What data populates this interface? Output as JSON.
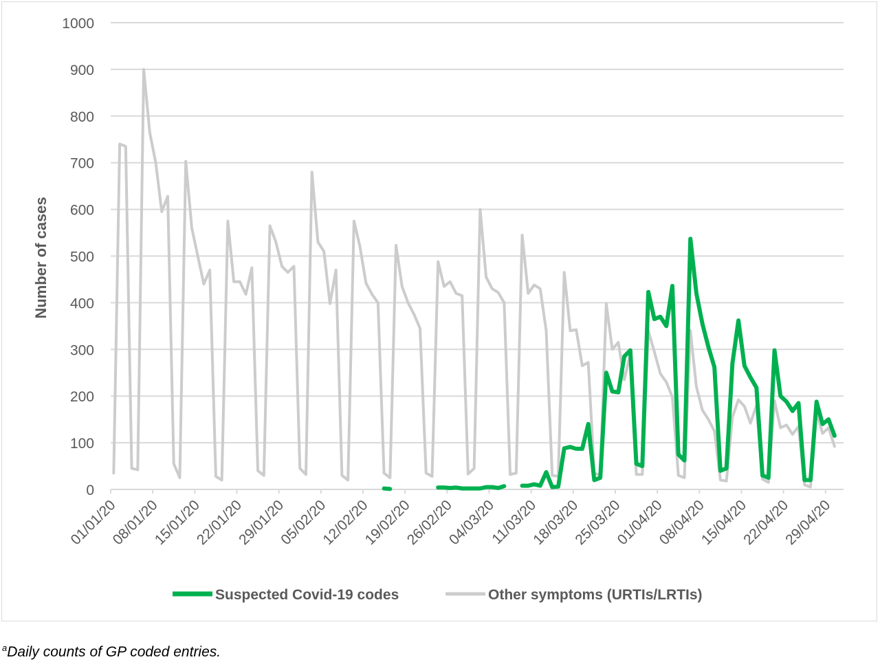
{
  "chart_data": {
    "type": "line",
    "title": "",
    "xlabel": "",
    "ylabel": "Number of cases",
    "ylim": [
      0,
      1000
    ],
    "yticks": [
      0,
      100,
      200,
      300,
      400,
      500,
      600,
      700,
      800,
      900,
      1000
    ],
    "x_tick_labels": [
      "01/01/20",
      "08/01/20",
      "15/01/20",
      "22/01/20",
      "29/01/20",
      "05/02/20",
      "12/02/20",
      "19/02/20",
      "26/02/20",
      "04/03/20",
      "11/03/20",
      "18/03/20",
      "25/03/20",
      "01/04/20",
      "08/04/20",
      "15/04/20",
      "22/04/20",
      "29/04/20"
    ],
    "grid": true,
    "legend_position": "bottom",
    "start_date": "2020-01-01",
    "num_days": 122,
    "colors": {
      "covid": "#00b050",
      "other": "#cccccc",
      "grid": "#d9d9d9",
      "axis_text": "#595959"
    },
    "series": [
      {
        "name": "Suspected Covid-19 codes",
        "values": [
          null,
          null,
          null,
          null,
          null,
          null,
          null,
          null,
          null,
          null,
          null,
          null,
          null,
          null,
          null,
          null,
          null,
          null,
          null,
          null,
          null,
          null,
          null,
          null,
          null,
          null,
          null,
          null,
          null,
          null,
          null,
          null,
          null,
          null,
          null,
          null,
          null,
          null,
          null,
          null,
          null,
          null,
          null,
          null,
          null,
          2,
          1,
          null,
          null,
          null,
          null,
          null,
          null,
          null,
          4,
          4,
          3,
          4,
          2,
          2,
          2,
          2,
          5,
          5,
          3,
          7,
          null,
          null,
          8,
          8,
          11,
          8,
          37,
          5,
          6,
          88,
          91,
          87,
          87,
          140,
          20,
          25,
          250,
          210,
          208,
          285,
          298,
          55,
          50,
          423,
          365,
          370,
          350,
          436,
          75,
          62,
          537,
          420,
          355,
          305,
          262,
          40,
          45,
          270,
          362,
          265,
          240,
          218,
          30,
          25,
          298,
          200,
          188,
          168,
          185,
          20,
          20,
          188,
          140,
          150,
          115
        ]
      },
      {
        "name": "Other symptoms (URTIs/LRTIs)",
        "values": [
          35,
          740,
          735,
          45,
          42,
          900,
          765,
          700,
          595,
          628,
          55,
          25,
          703,
          560,
          500,
          440,
          470,
          28,
          20,
          575,
          445,
          445,
          418,
          475,
          40,
          30,
          565,
          530,
          478,
          465,
          478,
          45,
          32,
          680,
          530,
          510,
          398,
          470,
          30,
          20,
          575,
          520,
          442,
          418,
          400,
          35,
          25,
          523,
          435,
          400,
          375,
          345,
          35,
          28,
          488,
          435,
          445,
          420,
          415,
          33,
          45,
          600,
          455,
          430,
          422,
          400,
          32,
          35,
          545,
          420,
          438,
          430,
          340,
          30,
          28,
          465,
          340,
          342,
          265,
          272,
          35,
          30,
          398,
          300,
          315,
          235,
          290,
          32,
          32,
          340,
          295,
          248,
          230,
          198,
          30,
          25,
          340,
          220,
          170,
          150,
          125,
          20,
          18,
          155,
          192,
          178,
          142,
          180,
          22,
          15,
          190,
          132,
          138,
          118,
          135,
          10,
          5,
          165,
          120,
          132,
          92
        ]
      }
    ]
  },
  "footnote": {
    "superscript": "a",
    "text": "Daily counts of GP coded entries."
  }
}
